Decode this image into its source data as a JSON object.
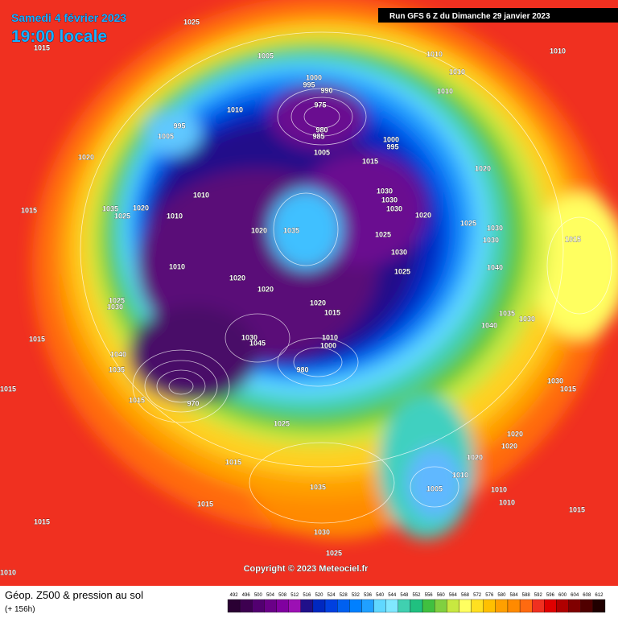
{
  "header": {
    "date": "Samedi 4 février 2023",
    "time": "19:00 locale",
    "run": "Run GFS 6 Z du Dimanche 29 janvier 2023"
  },
  "footer": {
    "title": "Géop. Z500 & pression au sol",
    "step": "(+ 156h)",
    "copyright": "Copyright © 2023 Meteociel.fr"
  },
  "pressure_labels": [
    1025,
    1015,
    1005,
    1010,
    1010,
    1010,
    1000,
    995,
    990,
    975,
    980,
    985,
    995,
    1005,
    1010,
    1010,
    1005,
    1015,
    1000,
    995,
    1020,
    1020,
    1010,
    1030,
    1030,
    1030,
    1020,
    1035,
    1025,
    1015,
    1010,
    1020,
    1025,
    1030,
    1030,
    1020,
    1035,
    1025,
    1030,
    1025,
    1040,
    1010,
    1020,
    1020,
    1020,
    1015,
    1025,
    1030,
    1035,
    1030,
    1040,
    1015,
    1040,
    1035,
    980,
    1015,
    1030,
    1015,
    1015,
    1015,
    1025,
    1020,
    1020,
    1020,
    1010,
    1005,
    1010,
    1010,
    1015,
    1015,
    1035,
    1015,
    1015,
    1030,
    1025,
    1010,
    1045,
    1030,
    970,
    1010,
    1000
  ],
  "colorbar": {
    "values": [
      492,
      496,
      500,
      504,
      508,
      512,
      516,
      520,
      524,
      528,
      532,
      536,
      540,
      544,
      548,
      552,
      556,
      560,
      564,
      568,
      572,
      576,
      580,
      584,
      588,
      592,
      596,
      600,
      604,
      608,
      612
    ],
    "colors": [
      "#2a0033",
      "#3d0050",
      "#520070",
      "#6a0088",
      "#8000a0",
      "#9c10b4",
      "#20108a",
      "#0028c0",
      "#0040e0",
      "#0060f0",
      "#0080ff",
      "#20a0ff",
      "#60d8ff",
      "#80e8ff",
      "#40d0b0",
      "#20c080",
      "#40c040",
      "#80d040",
      "#c8e840",
      "#ffff60",
      "#ffe020",
      "#ffc000",
      "#ffa000",
      "#ff8a00",
      "#ff6a10",
      "#f03020",
      "#e00000",
      "#b00000",
      "#800000",
      "#500000",
      "#200000"
    ]
  }
}
